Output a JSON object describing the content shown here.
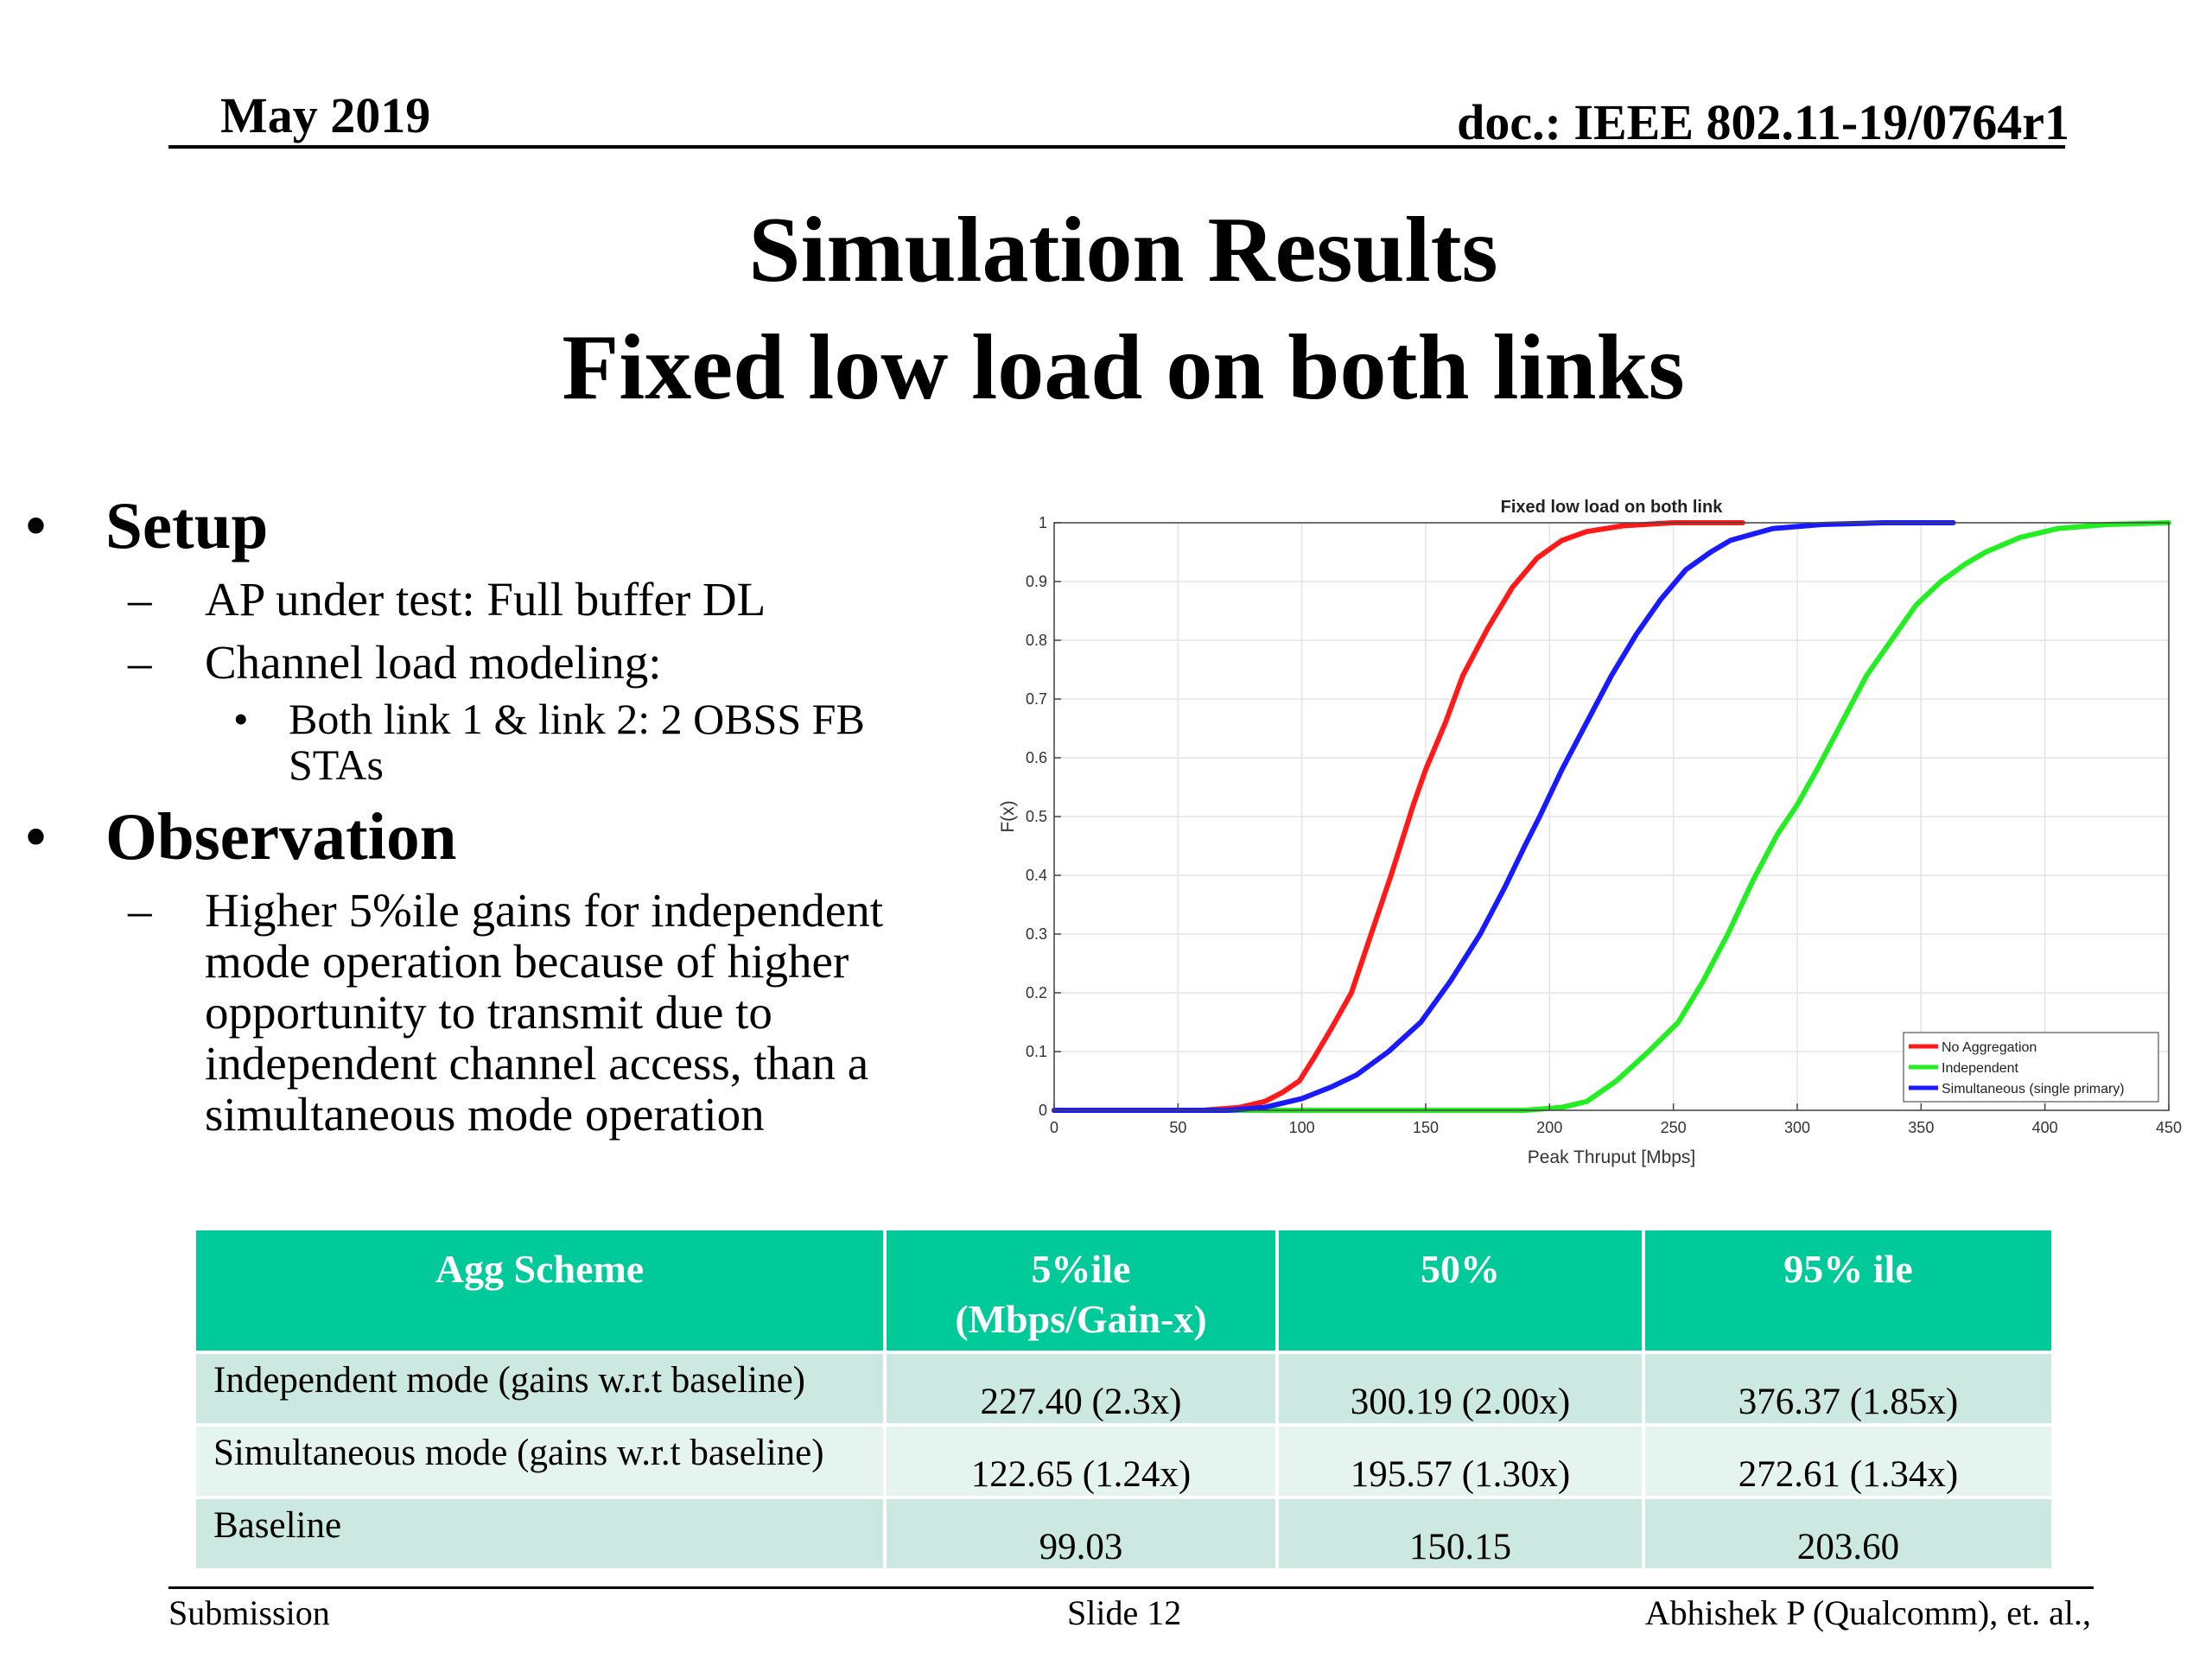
{
  "header": {
    "date": "May 2019",
    "doc": "doc.: IEEE 802.11-19/0764r1"
  },
  "title": {
    "line1": "Simulation Results",
    "line2": "Fixed low load on both links"
  },
  "bullets": {
    "setup": "Setup",
    "setup_items": {
      "ap": "AP under test: Full buffer DL",
      "channel": "Channel load modeling:",
      "links_line1": "Both link 1 & link 2: 2 OBSS FB",
      "links_line2": "STAs"
    },
    "observation": "Observation",
    "observation_lines": [
      "Higher 5%ile gains for independent",
      "mode operation because of higher",
      "opportunity to transmit due to",
      "independent channel access, than a",
      "simultaneous mode operation"
    ]
  },
  "chart_data": {
    "type": "line",
    "title": "Fixed low load on both link",
    "xlabel": "Peak Thruput [Mbps]",
    "ylabel": "F(x)",
    "xlim": [
      0,
      450
    ],
    "ylim": [
      0,
      1
    ],
    "xticks": [
      "0",
      "50",
      "100",
      "150",
      "200",
      "250",
      "300",
      "350",
      "400",
      "450"
    ],
    "yticks": [
      "0",
      "0.1",
      "0.2",
      "0.3",
      "0.4",
      "0.5",
      "0.6",
      "0.7",
      "0.8",
      "0.9",
      "1"
    ],
    "grid": true,
    "legend_position": "bottom-right",
    "series": [
      {
        "name": "No Aggregation",
        "color": "#ff1a1a",
        "points": [
          [
            0,
            0
          ],
          [
            60,
            0
          ],
          [
            75,
            0.005
          ],
          [
            85,
            0.015
          ],
          [
            92,
            0.03
          ],
          [
            99,
            0.05
          ],
          [
            105,
            0.09
          ],
          [
            112,
            0.14
          ],
          [
            120,
            0.2
          ],
          [
            128,
            0.3
          ],
          [
            136,
            0.4
          ],
          [
            145,
            0.52
          ],
          [
            150,
            0.58
          ],
          [
            158,
            0.66
          ],
          [
            165,
            0.74
          ],
          [
            175,
            0.82
          ],
          [
            185,
            0.89
          ],
          [
            195,
            0.94
          ],
          [
            205,
            0.97
          ],
          [
            215,
            0.985
          ],
          [
            230,
            0.995
          ],
          [
            250,
            1
          ],
          [
            278,
            1
          ]
        ]
      },
      {
        "name": "Independent",
        "color": "#22ee22",
        "points": [
          [
            0,
            0
          ],
          [
            190,
            0
          ],
          [
            205,
            0.005
          ],
          [
            215,
            0.015
          ],
          [
            227,
            0.05
          ],
          [
            240,
            0.1
          ],
          [
            252,
            0.15
          ],
          [
            262,
            0.22
          ],
          [
            272,
            0.3
          ],
          [
            282,
            0.39
          ],
          [
            292,
            0.47
          ],
          [
            300,
            0.52
          ],
          [
            308,
            0.58
          ],
          [
            318,
            0.66
          ],
          [
            328,
            0.74
          ],
          [
            338,
            0.8
          ],
          [
            348,
            0.86
          ],
          [
            358,
            0.9
          ],
          [
            368,
            0.93
          ],
          [
            376,
            0.95
          ],
          [
            390,
            0.975
          ],
          [
            405,
            0.99
          ],
          [
            425,
            0.997
          ],
          [
            450,
            1
          ]
        ]
      },
      {
        "name": "Simultaneous (single primary)",
        "color": "#1a1aff",
        "points": [
          [
            0,
            0
          ],
          [
            70,
            0
          ],
          [
            85,
            0.005
          ],
          [
            100,
            0.02
          ],
          [
            112,
            0.04
          ],
          [
            122,
            0.06
          ],
          [
            135,
            0.1
          ],
          [
            148,
            0.15
          ],
          [
            160,
            0.22
          ],
          [
            172,
            0.3
          ],
          [
            182,
            0.38
          ],
          [
            190,
            0.45
          ],
          [
            196,
            0.5
          ],
          [
            205,
            0.58
          ],
          [
            215,
            0.66
          ],
          [
            225,
            0.74
          ],
          [
            235,
            0.81
          ],
          [
            245,
            0.87
          ],
          [
            255,
            0.92
          ],
          [
            265,
            0.95
          ],
          [
            273,
            0.97
          ],
          [
            290,
            0.99
          ],
          [
            310,
            0.997
          ],
          [
            335,
            1
          ],
          [
            363,
            1
          ]
        ]
      }
    ]
  },
  "table": {
    "headers": {
      "scheme": "Agg Scheme",
      "p5_line1": "5%ile",
      "p5_line2": "(Mbps/Gain-x)",
      "p50": "50%",
      "p95": "95% ile"
    },
    "rows": [
      {
        "name": "Independent mode (gains w.r.t baseline)",
        "p5": "227.40 (2.3x)",
        "p50": "300.19 (2.00x)",
        "p95": "376.37 (1.85x)"
      },
      {
        "name": "Simultaneous mode (gains w.r.t baseline)",
        "p5": "122.65 (1.24x)",
        "p50": "195.57 (1.30x)",
        "p95": "272.61 (1.34x)"
      },
      {
        "name": "Baseline",
        "p5": "99.03",
        "p50": "150.15",
        "p95": "203.60"
      }
    ]
  },
  "footer": {
    "left": "Submission",
    "center": "Slide 12",
    "right": "Abhishek P (Qualcomm), et. al.,"
  }
}
